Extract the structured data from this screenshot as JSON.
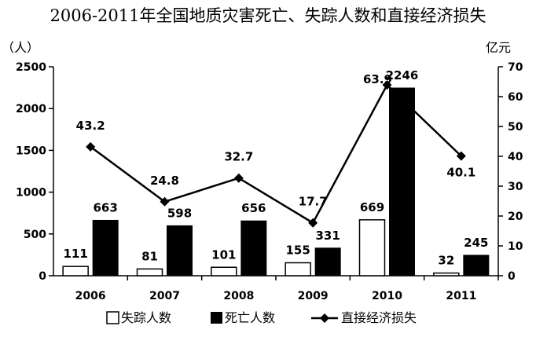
{
  "chart_data": {
    "type": "bar",
    "title": "2006-2011年全国地质灾害死亡、失踪人数和直接经济损失",
    "left_unit": "（人）",
    "right_unit": "亿元",
    "categories": [
      "2006",
      "2007",
      "2008",
      "2009",
      "2010",
      "2011"
    ],
    "left_axis": {
      "ylim": [
        0,
        2500
      ],
      "ticks": [
        "0",
        "500",
        "1000",
        "1500",
        "2000",
        "2500"
      ]
    },
    "right_axis": {
      "ylim": [
        0,
        70
      ],
      "ticks": [
        "0",
        "10",
        "20",
        "30",
        "40",
        "50",
        "60",
        "70"
      ]
    },
    "grid": false,
    "legend_position": "bottom",
    "series": [
      {
        "name": "失踪人数",
        "kind": "bar",
        "axis": "left",
        "values": [
          111,
          81,
          101,
          155,
          669,
          32
        ],
        "labels": [
          "111",
          "81",
          "101",
          "155",
          "669",
          "32"
        ],
        "color": "#ffffff"
      },
      {
        "name": "死亡人数",
        "kind": "bar",
        "axis": "left",
        "values": [
          663,
          598,
          656,
          331,
          2246,
          245
        ],
        "labels": [
          "663",
          "598",
          "656",
          "331",
          "2246",
          "245"
        ],
        "color": "#000000"
      },
      {
        "name": "直接经济损失",
        "kind": "line",
        "axis": "right",
        "values": [
          43.2,
          24.8,
          32.7,
          17.7,
          63.9,
          40.1
        ],
        "labels": [
          "43.2",
          "24.8",
          "32.7",
          "17.7",
          "63.9",
          "40.1"
        ],
        "color": "#000000"
      }
    ]
  }
}
